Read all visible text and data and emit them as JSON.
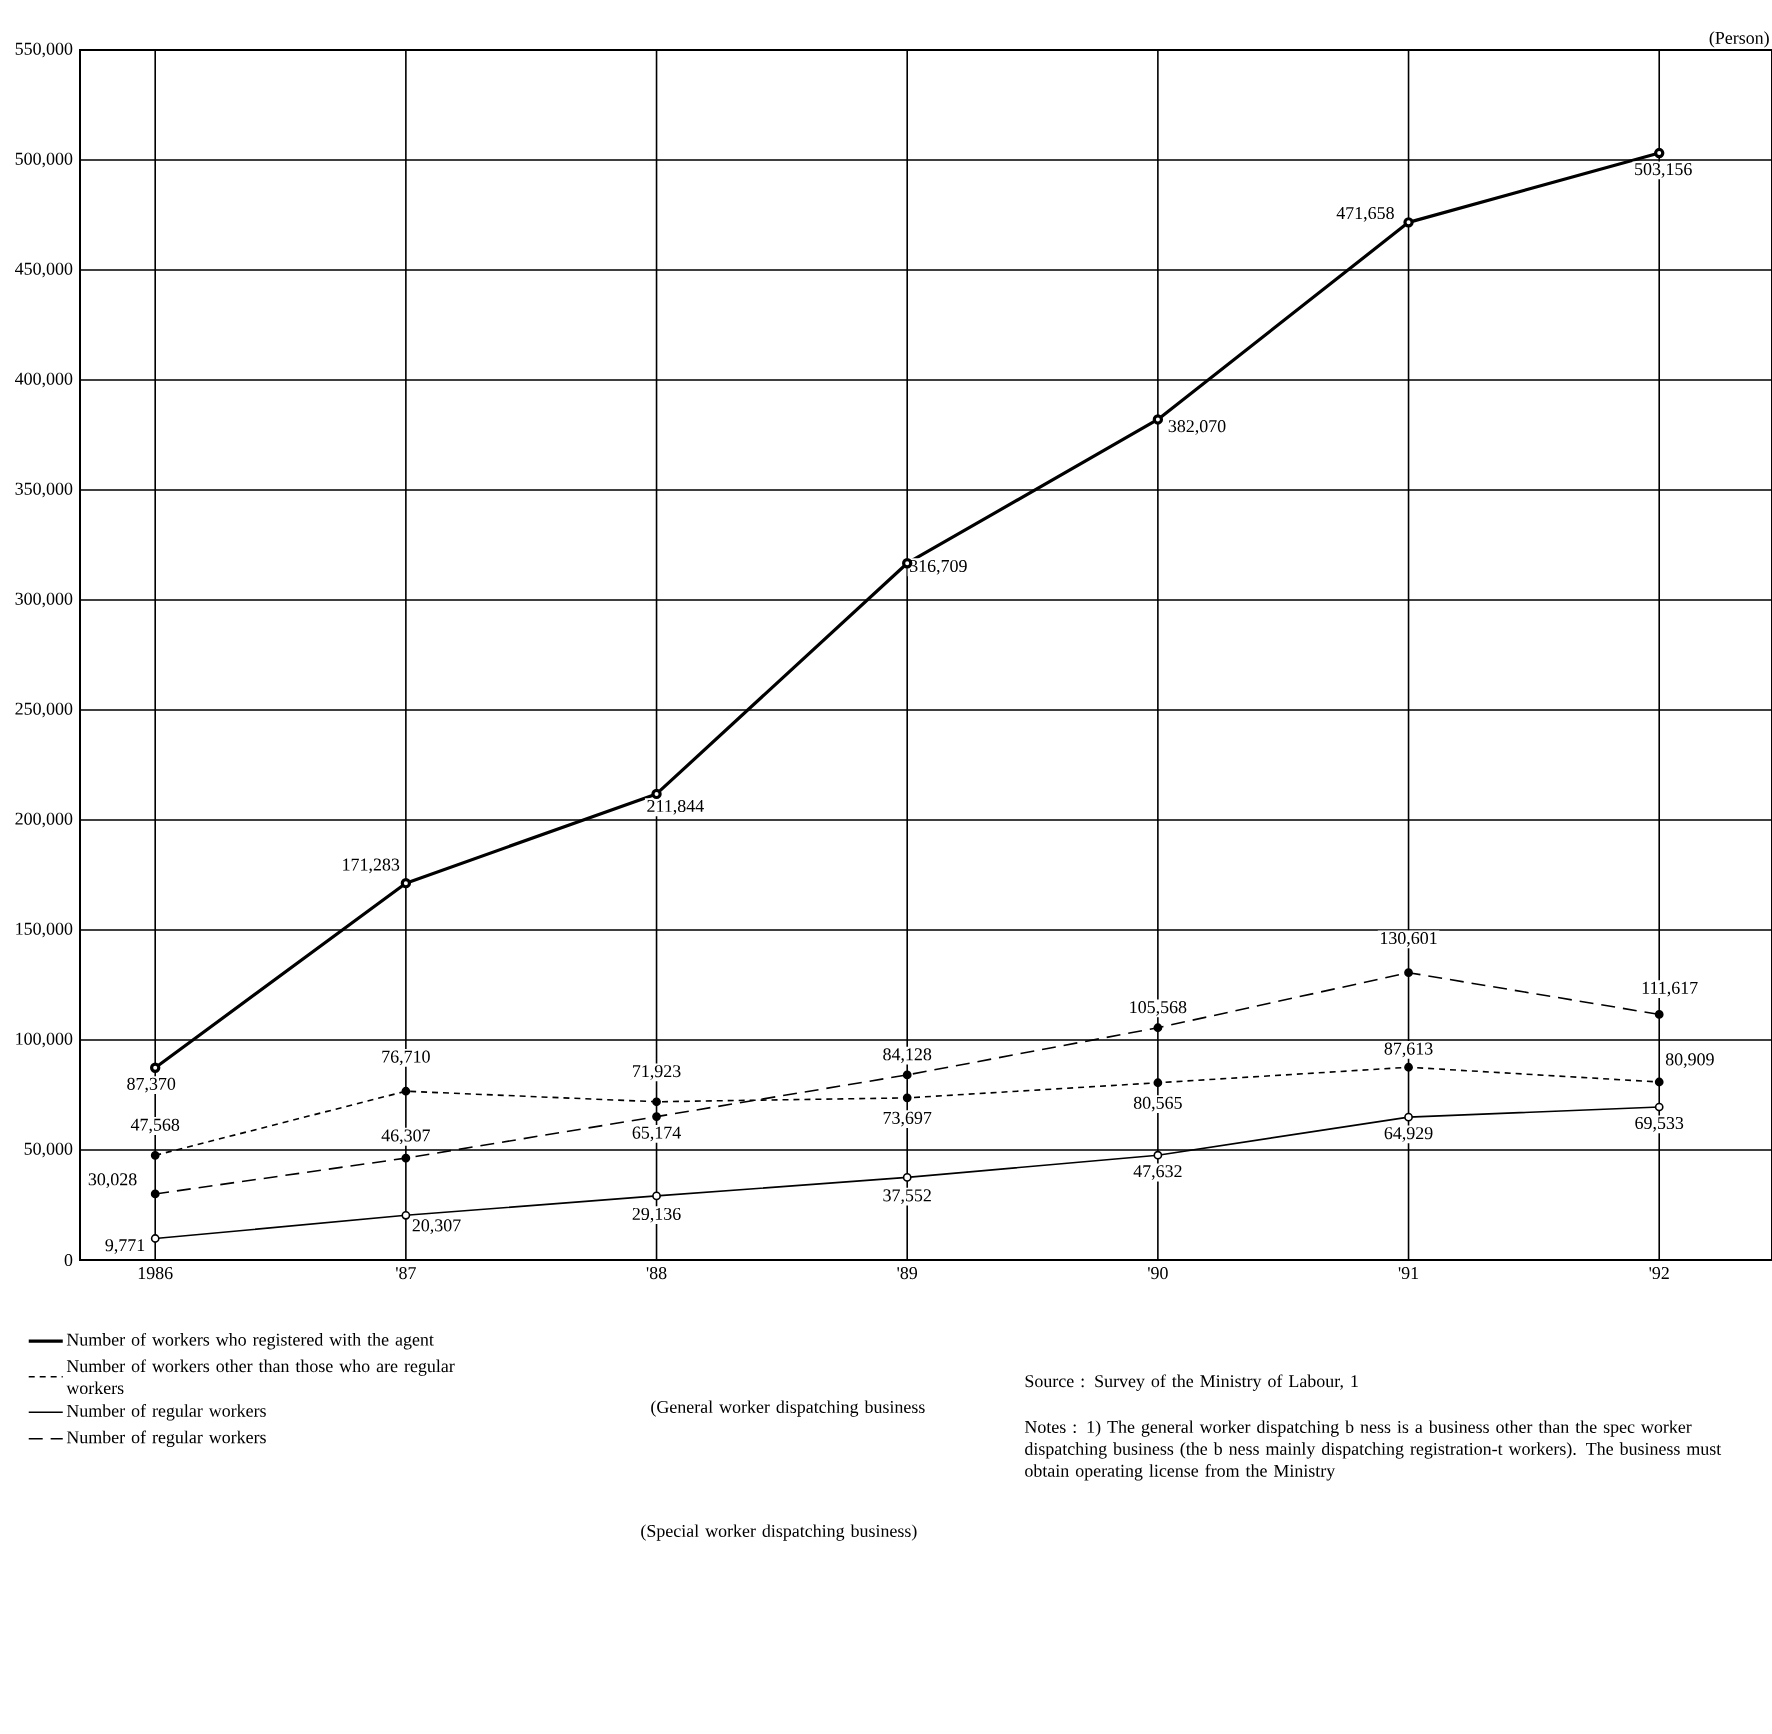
{
  "chart_data": {
    "type": "line",
    "ylabel": "(Person)",
    "categories": [
      "1986",
      "'87",
      "'88",
      "'89",
      "'90",
      "'91",
      "'92"
    ],
    "ylim": [
      0,
      550000
    ],
    "yticks": [
      {
        "value": 0,
        "label": "0"
      },
      {
        "value": 50000,
        "label": "50,000"
      },
      {
        "value": 100000,
        "label": "100,000"
      },
      {
        "value": 150000,
        "label": "150,000"
      },
      {
        "value": 200000,
        "label": "200,000"
      },
      {
        "value": 250000,
        "label": "250,000"
      },
      {
        "value": 300000,
        "label": "300,000"
      },
      {
        "value": 350000,
        "label": "350,000"
      },
      {
        "value": 400000,
        "label": "400,000"
      },
      {
        "value": 450000,
        "label": "450,000"
      },
      {
        "value": 500000,
        "label": "500,000"
      },
      {
        "value": 550000,
        "label": "550,000"
      }
    ],
    "grid": true,
    "legend": "bottom left",
    "marker": "circle",
    "series": [
      {
        "name": "Number of workers who registered with the agent",
        "color": "#000000",
        "line_style": "solid",
        "values": [
          87370,
          171283,
          211844,
          316709,
          382070,
          471658,
          503156
        ],
        "value_labels": [
          "87,370",
          "171,283",
          "211,844",
          "316,709",
          "382,070",
          "471,658",
          "503,156"
        ]
      },
      {
        "name": "Number of workers other than those who are regular workers",
        "color": "#000000",
        "line_style": "dashed",
        "values": [
          47568,
          76710,
          71923,
          73697,
          80565,
          87613,
          80909
        ],
        "value_labels": [
          "47,568",
          "76,710",
          "71,923",
          "73,697",
          "80,565",
          "87,613",
          "80,909"
        ]
      },
      {
        "name": "Number of regular workers",
        "color": "#000000",
        "line_style": "solid",
        "values": [
          9771,
          20307,
          29136,
          37552,
          47632,
          64929,
          69533
        ],
        "value_labels": [
          "9,771",
          "20,307",
          "29,136",
          "37,552",
          "47,632",
          "64,929",
          "69,533"
        ]
      },
      {
        "name": "Number of regular workers",
        "color": "#000000",
        "line_style": "dashed",
        "values": [
          30028,
          46307,
          65174,
          84128,
          105568,
          130601,
          111617
        ],
        "value_labels": [
          "30,028",
          "46,307",
          "65,174",
          "84,128",
          "105,568",
          "130,601",
          "111,617"
        ]
      }
    ],
    "annotations": [
      "(General worker dispatching business",
      "(Special worker dispatching business)",
      "Source : Survey of the Ministry of Labour, 1",
      "Notes : 1) The general worker dispatching b ness is a business other than the spec worker dispatching business (the b ness mainly dispatching registration-t workers). The business must obtain operating license from the Ministry"
    ]
  }
}
